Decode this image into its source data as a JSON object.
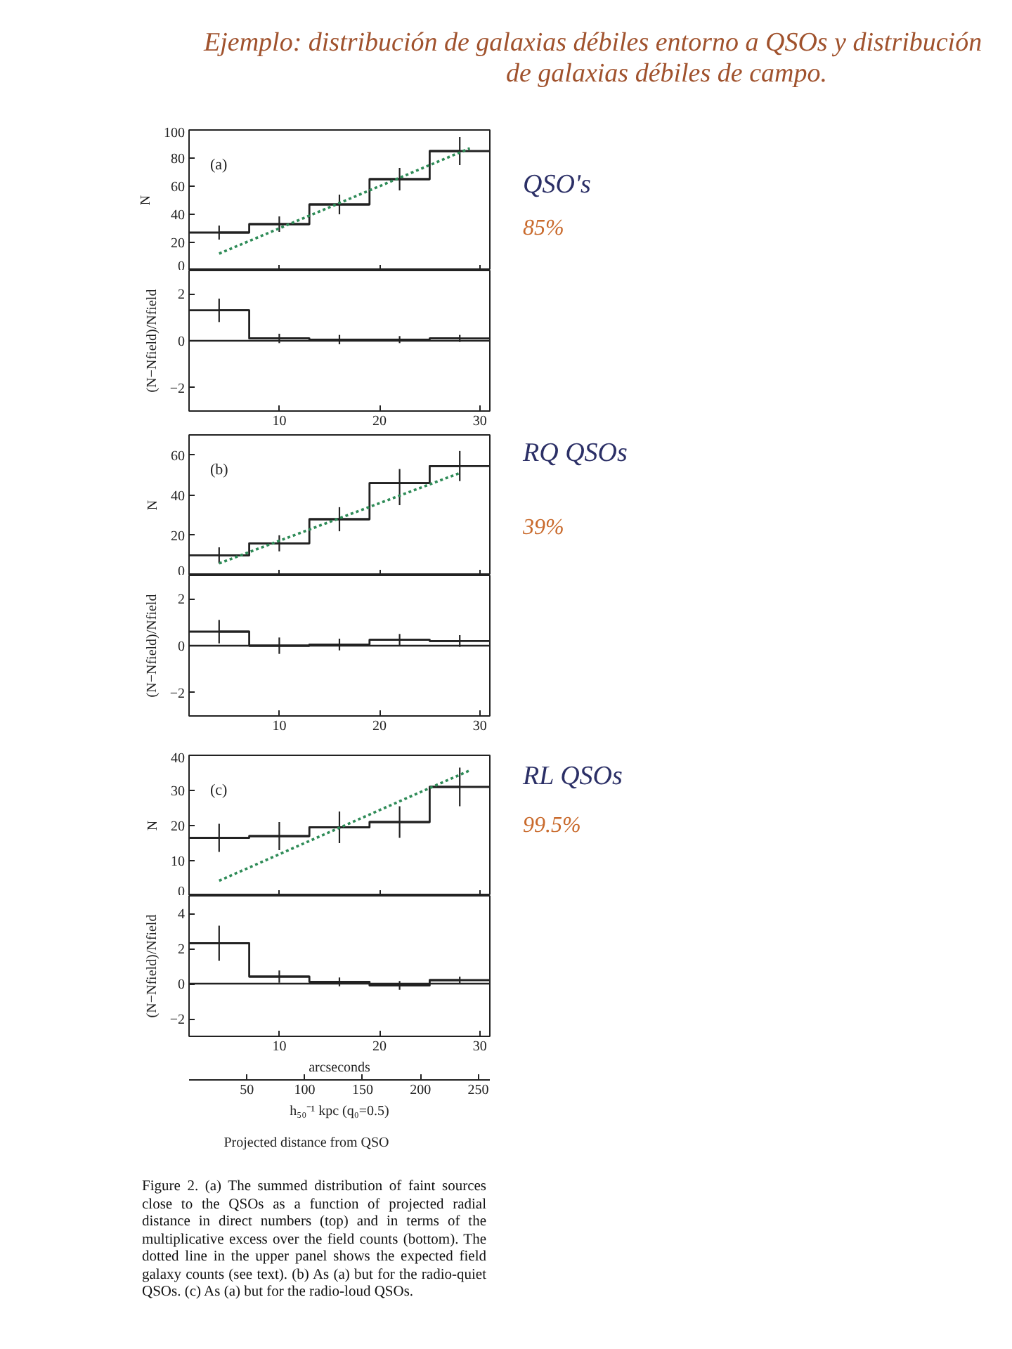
{
  "chart_data": [
    {
      "type": "step",
      "title": "Ejemplo: distribución de galaxias débiles entorno a QSOs y distribución de galaxias débiles de campo.",
      "ylabel": "N",
      "x": [
        4,
        10,
        16,
        22,
        28
      ],
      "xlim": [
        1,
        31
      ],
      "xticks": [
        10,
        20,
        30
      ],
      "ylim": [
        0,
        100
      ],
      "yticks": [
        0,
        20,
        40,
        60,
        80,
        100
      ],
      "tick_labels": "y",
      "series": [
        {
          "type": "step",
          "color": "#222222",
          "values": [
            27,
            33,
            47,
            65,
            85
          ],
          "errors": [
            5,
            5.5,
            7,
            8,
            10
          ],
          "xerrors": [
            3,
            3,
            3,
            3,
            3
          ]
        },
        {
          "type": "line",
          "color": "#2e8b57",
          "line_style": "dotted",
          "x": [
            4,
            29
          ],
          "values": [
            12,
            87
          ]
        }
      ],
      "annotations": [
        "(a)",
        "QSO's",
        "85%"
      ]
    },
    {
      "type": "step",
      "ylabel": "(N−Nfield)/Nfield",
      "x": [
        4,
        10,
        16,
        22,
        28
      ],
      "xlim": [
        1,
        31
      ],
      "xticks": [
        10,
        20,
        30
      ],
      "ylim": [
        -3,
        3
      ],
      "yticks": [
        -2,
        0,
        2
      ],
      "color": "#222222",
      "values": [
        1.3,
        0.1,
        0.05,
        0.05,
        0.1
      ],
      "errors": [
        0.5,
        0.2,
        0.2,
        0.15,
        0.15
      ],
      "xerrors": [
        3,
        3,
        3,
        3,
        3
      ],
      "ref_lines": [
        {
          "axis": "y",
          "value": 0,
          "color": "#222222"
        }
      ]
    },
    {
      "type": "step",
      "ylabel": "N",
      "x": [
        4,
        10,
        16,
        22,
        28
      ],
      "xlim": [
        1,
        31
      ],
      "xticks": [
        10,
        20,
        30
      ],
      "ylim": [
        0,
        70
      ],
      "yticks": [
        0,
        20,
        40,
        60
      ],
      "tick_labels": "y",
      "series": [
        {
          "type": "step",
          "color": "#222222",
          "values": [
            10,
            16,
            28,
            46,
            54.5
          ],
          "errors": [
            4,
            4,
            6,
            [
              35,
              53
            ],
            7.5
          ],
          "xerrors": [
            3,
            3,
            3,
            3,
            3
          ]
        },
        {
          "type": "line",
          "color": "#2e8b57",
          "line_style": "dotted",
          "x": [
            4,
            28
          ],
          "values": [
            6,
            51
          ]
        }
      ],
      "annotations": [
        "(b)",
        "RQ QSOs",
        "39%"
      ]
    },
    {
      "type": "step",
      "ylabel": "(N−Nfield)/Nfield",
      "x": [
        4,
        10,
        16,
        22,
        28
      ],
      "xlim": [
        1,
        31
      ],
      "xticks": [
        10,
        20,
        30
      ],
      "ylim": [
        -3,
        3
      ],
      "yticks": [
        -2,
        0,
        2
      ],
      "color": "#222222",
      "values": [
        0.6,
        0,
        0.05,
        0.25,
        0.2
      ],
      "errors": [
        0.5,
        0.35,
        0.25,
        0.25,
        0.25
      ],
      "xerrors": [
        3,
        3,
        3,
        3,
        3
      ],
      "ref_lines": [
        {
          "axis": "y",
          "value": 0,
          "color": "#222222"
        }
      ]
    },
    {
      "type": "step",
      "ylabel": "N",
      "x": [
        4,
        10,
        16,
        22,
        28
      ],
      "xlim": [
        1,
        31
      ],
      "xticks": [
        10,
        20,
        30
      ],
      "ylim": [
        0,
        40
      ],
      "yticks": [
        0,
        10,
        20,
        30,
        40
      ],
      "tick_labels": "y",
      "series": [
        {
          "type": "step",
          "color": "#222222",
          "values": [
            16.5,
            17,
            19.5,
            21,
            31
          ],
          "errors": [
            4,
            4,
            4.5,
            4.5,
            5.5
          ],
          "xerrors": [
            3,
            3,
            3,
            3,
            3
          ]
        },
        {
          "type": "line",
          "color": "#2e8b57",
          "line_style": "dotted",
          "x": [
            4,
            29
          ],
          "values": [
            4.3,
            35.7
          ]
        }
      ],
      "annotations": [
        "(c)",
        "RL QSOs",
        "99.5%"
      ]
    },
    {
      "type": "step",
      "xlabel": "arcseconds",
      "ylabel": "(N−Nfield)/Nfield",
      "x": [
        4,
        10,
        16,
        22,
        28
      ],
      "xlim": [
        1,
        31
      ],
      "xticks": [
        10,
        20,
        30
      ],
      "ylim": [
        -3,
        5
      ],
      "yticks": [
        -2,
        0,
        2,
        4
      ],
      "x2lim": [
        0,
        260
      ],
      "x2ticks": [
        50,
        100,
        150,
        200,
        250
      ],
      "x2label": "h₅₀⁻¹ kpc (q₀=0.5)",
      "color": "#222222",
      "values": [
        2.3,
        0.4,
        0.1,
        -0.1,
        0.2
      ],
      "errors": [
        1,
        0.35,
        0.25,
        0.25,
        0.2
      ],
      "xerrors": [
        3,
        3,
        3,
        3,
        3
      ],
      "ref_lines": [
        {
          "axis": "y",
          "value": 0,
          "color": "#222222"
        }
      ],
      "annotations": [
        "Projected distance from QSO",
        "Figure 2. (a) The summed distribution of faint sources close to the QSOs as a function of projected radial distance in direct numbers (top) and in terms of the multiplicative excess over the field counts (bottom). The dotted line in the upper panel shows the expected field galaxy counts (see text). (b) As (a) but for the radio-quiet QSOs. (c) As (a) but for the radio-loud QSOs."
      ]
    }
  ]
}
